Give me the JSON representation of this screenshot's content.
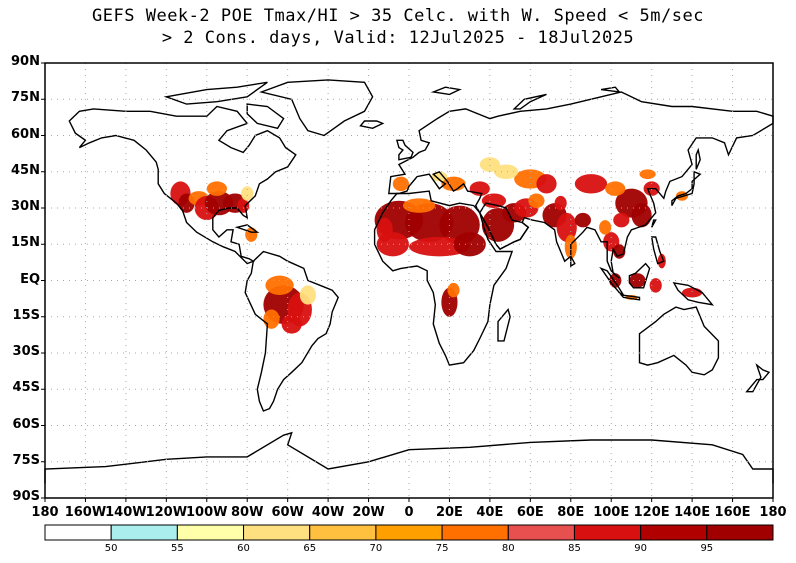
{
  "title": {
    "line1": "GEFS Week-2 POE Tmax/HI > 35 Celc. with W. Speed < 5m/sec",
    "line2": "> 2 Cons. days, Valid: 12Jul2025 - 18Jul2025"
  },
  "lat_labels": [
    "90N",
    "75N",
    "60N",
    "45N",
    "30N",
    "15N",
    "EQ",
    "15S",
    "30S",
    "45S",
    "60S",
    "75S",
    "90S"
  ],
  "lon_labels": [
    "180",
    "160W",
    "140W",
    "120W",
    "100W",
    "80W",
    "60W",
    "40W",
    "20W",
    "0",
    "20E",
    "40E",
    "60E",
    "80E",
    "100E",
    "120E",
    "140E",
    "160E",
    "180"
  ],
  "colorbar": {
    "colors": [
      "#ffffff",
      "#aaeeee",
      "#ffffaa",
      "#ffe080",
      "#ffc040",
      "#ffa000",
      "#ff7000",
      "#e85050",
      "#d81010",
      "#b00000",
      "#a00000"
    ],
    "labels": [
      "50",
      "55",
      "60",
      "65",
      "70",
      "75",
      "80",
      "85",
      "90",
      "95"
    ]
  },
  "map_colors": {
    "land_outline": "#000000",
    "grid": "#aaaaaa",
    "heat_low": "#ffe080",
    "heat_mid": "#ff7000",
    "heat_high": "#d81010",
    "heat_max": "#a00000"
  }
}
